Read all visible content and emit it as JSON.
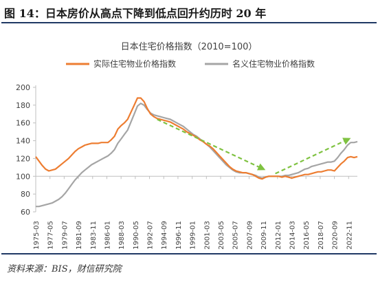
{
  "figure": {
    "heading": "图 14：日本房价从高点下降到低点回升约历时 20 年",
    "source": "资料来源：BIS，财信研究院"
  },
  "colors": {
    "real_series": "#ed7d31",
    "nominal_series": "#a5a5a5",
    "trend_arrow": "#7fc241",
    "heading_rule": "#1f3864"
  },
  "chart_data": {
    "type": "line",
    "title": "日本住宅价格指数（2010=100）",
    "xlabel": "",
    "ylabel": "",
    "ylim": [
      60,
      200
    ],
    "yticks": [
      60,
      80,
      100,
      120,
      140,
      160,
      180,
      200
    ],
    "grid": false,
    "legend_position": "top",
    "x_tick_labels": [
      "1975-03",
      "1977-05",
      "1979-07",
      "1981-09",
      "1983-11",
      "1986-01",
      "1988-03",
      "1990-05",
      "1992-07",
      "1994-09",
      "1996-11",
      "1999-01",
      "2001-03",
      "2003-05",
      "2005-07",
      "2007-09",
      "2009-11",
      "2012-01",
      "2014-03",
      "2016-05",
      "2018-07",
      "2020-09",
      "2022-11"
    ],
    "series": [
      {
        "name": "实际住宅物业价格指数",
        "color": "#ed7d31",
        "points": [
          [
            "1975-03",
            122
          ],
          [
            "1975-09",
            117
          ],
          [
            "1976-03",
            112
          ],
          [
            "1976-09",
            108
          ],
          [
            "1977-03",
            106
          ],
          [
            "1977-09",
            107
          ],
          [
            "1978-03",
            108
          ],
          [
            "1978-09",
            111
          ],
          [
            "1979-03",
            114
          ],
          [
            "1979-09",
            117
          ],
          [
            "1980-03",
            120
          ],
          [
            "1980-09",
            124
          ],
          [
            "1981-03",
            128
          ],
          [
            "1981-09",
            131
          ],
          [
            "1982-03",
            133
          ],
          [
            "1982-09",
            135
          ],
          [
            "1983-03",
            136
          ],
          [
            "1983-09",
            137
          ],
          [
            "1984-03",
            137
          ],
          [
            "1984-09",
            137
          ],
          [
            "1985-03",
            138
          ],
          [
            "1985-09",
            138
          ],
          [
            "1986-03",
            138
          ],
          [
            "1986-09",
            141
          ],
          [
            "1987-03",
            145
          ],
          [
            "1987-09",
            153
          ],
          [
            "1988-03",
            157
          ],
          [
            "1988-09",
            160
          ],
          [
            "1989-03",
            164
          ],
          [
            "1989-09",
            172
          ],
          [
            "1990-03",
            180
          ],
          [
            "1990-09",
            188
          ],
          [
            "1991-03",
            188
          ],
          [
            "1991-09",
            184
          ],
          [
            "1992-03",
            176
          ],
          [
            "1992-09",
            170
          ],
          [
            "1993-03",
            167
          ],
          [
            "1993-09",
            165
          ],
          [
            "1994-03",
            164
          ],
          [
            "1994-09",
            163
          ],
          [
            "1995-03",
            162
          ],
          [
            "1995-09",
            161
          ],
          [
            "1996-03",
            159
          ],
          [
            "1996-09",
            157
          ],
          [
            "1997-03",
            155
          ],
          [
            "1997-09",
            153
          ],
          [
            "1998-03",
            150
          ],
          [
            "1998-09",
            148
          ],
          [
            "1999-03",
            146
          ],
          [
            "1999-09",
            144
          ],
          [
            "2000-03",
            141
          ],
          [
            "2000-09",
            139
          ],
          [
            "2001-03",
            136
          ],
          [
            "2001-09",
            134
          ],
          [
            "2002-03",
            131
          ],
          [
            "2002-09",
            127
          ],
          [
            "2003-03",
            123
          ],
          [
            "2003-09",
            119
          ],
          [
            "2004-03",
            115
          ],
          [
            "2004-09",
            111
          ],
          [
            "2005-03",
            108
          ],
          [
            "2005-09",
            106
          ],
          [
            "2006-03",
            105
          ],
          [
            "2006-09",
            104
          ],
          [
            "2007-03",
            104
          ],
          [
            "2007-09",
            103
          ],
          [
            "2008-03",
            102
          ],
          [
            "2008-09",
            100
          ],
          [
            "2009-03",
            98
          ],
          [
            "2009-09",
            97
          ],
          [
            "2010-03",
            99
          ],
          [
            "2010-09",
            100
          ],
          [
            "2011-03",
            100
          ],
          [
            "2011-09",
            100
          ],
          [
            "2012-03",
            100
          ],
          [
            "2012-09",
            99
          ],
          [
            "2013-03",
            100
          ],
          [
            "2013-09",
            99
          ],
          [
            "2014-03",
            98
          ],
          [
            "2014-09",
            99
          ],
          [
            "2015-03",
            100
          ],
          [
            "2015-09",
            101
          ],
          [
            "2016-03",
            102
          ],
          [
            "2016-09",
            102
          ],
          [
            "2017-03",
            103
          ],
          [
            "2017-09",
            104
          ],
          [
            "2018-03",
            105
          ],
          [
            "2018-09",
            105
          ],
          [
            "2019-03",
            106
          ],
          [
            "2019-09",
            107
          ],
          [
            "2020-03",
            107
          ],
          [
            "2020-09",
            106
          ],
          [
            "2021-03",
            110
          ],
          [
            "2021-09",
            114
          ],
          [
            "2022-03",
            117
          ],
          [
            "2022-09",
            121
          ],
          [
            "2023-03",
            122
          ],
          [
            "2023-09",
            121
          ],
          [
            "2024-03",
            122
          ]
        ]
      },
      {
        "name": "名义住宅物业价格指数",
        "color": "#a5a5a5",
        "points": [
          [
            "1975-03",
            66
          ],
          [
            "1975-09",
            66
          ],
          [
            "1976-03",
            67
          ],
          [
            "1976-09",
            68
          ],
          [
            "1977-03",
            69
          ],
          [
            "1977-09",
            70
          ],
          [
            "1978-03",
            72
          ],
          [
            "1978-09",
            74
          ],
          [
            "1979-03",
            77
          ],
          [
            "1979-09",
            81
          ],
          [
            "1980-03",
            86
          ],
          [
            "1980-09",
            91
          ],
          [
            "1981-03",
            96
          ],
          [
            "1981-09",
            100
          ],
          [
            "1982-03",
            104
          ],
          [
            "1982-09",
            107
          ],
          [
            "1983-03",
            110
          ],
          [
            "1983-09",
            113
          ],
          [
            "1984-03",
            115
          ],
          [
            "1984-09",
            117
          ],
          [
            "1985-03",
            119
          ],
          [
            "1985-09",
            121
          ],
          [
            "1986-03",
            123
          ],
          [
            "1986-09",
            126
          ],
          [
            "1987-03",
            130
          ],
          [
            "1987-09",
            137
          ],
          [
            "1988-03",
            142
          ],
          [
            "1988-09",
            147
          ],
          [
            "1989-03",
            152
          ],
          [
            "1989-09",
            161
          ],
          [
            "1990-03",
            170
          ],
          [
            "1990-09",
            179
          ],
          [
            "1991-03",
            182
          ],
          [
            "1991-09",
            180
          ],
          [
            "1992-03",
            175
          ],
          [
            "1992-09",
            171
          ],
          [
            "1993-03",
            169
          ],
          [
            "1993-09",
            168
          ],
          [
            "1994-03",
            167
          ],
          [
            "1994-09",
            166
          ],
          [
            "1995-03",
            165
          ],
          [
            "1995-09",
            164
          ],
          [
            "1996-03",
            162
          ],
          [
            "1996-09",
            160
          ],
          [
            "1997-03",
            158
          ],
          [
            "1997-09",
            156
          ],
          [
            "1998-03",
            153
          ],
          [
            "1998-09",
            150
          ],
          [
            "1999-03",
            147
          ],
          [
            "1999-09",
            145
          ],
          [
            "2000-03",
            142
          ],
          [
            "2000-09",
            139
          ],
          [
            "2001-03",
            136
          ],
          [
            "2001-09",
            133
          ],
          [
            "2002-03",
            129
          ],
          [
            "2002-09",
            125
          ],
          [
            "2003-03",
            121
          ],
          [
            "2003-09",
            117
          ],
          [
            "2004-03",
            113
          ],
          [
            "2004-09",
            110
          ],
          [
            "2005-03",
            107
          ],
          [
            "2005-09",
            105
          ],
          [
            "2006-03",
            104
          ],
          [
            "2006-09",
            104
          ],
          [
            "2007-03",
            104
          ],
          [
            "2007-09",
            103
          ],
          [
            "2008-03",
            102
          ],
          [
            "2008-09",
            101
          ],
          [
            "2009-03",
            99
          ],
          [
            "2009-09",
            98
          ],
          [
            "2010-03",
            99
          ],
          [
            "2010-09",
            100
          ],
          [
            "2011-03",
            100
          ],
          [
            "2011-09",
            100
          ],
          [
            "2012-03",
            100
          ],
          [
            "2012-09",
            100
          ],
          [
            "2013-03",
            101
          ],
          [
            "2013-09",
            101
          ],
          [
            "2014-03",
            102
          ],
          [
            "2014-09",
            103
          ],
          [
            "2015-03",
            104
          ],
          [
            "2015-09",
            106
          ],
          [
            "2016-03",
            108
          ],
          [
            "2016-09",
            109
          ],
          [
            "2017-03",
            111
          ],
          [
            "2017-09",
            112
          ],
          [
            "2018-03",
            113
          ],
          [
            "2018-09",
            114
          ],
          [
            "2019-03",
            115
          ],
          [
            "2019-09",
            116
          ],
          [
            "2020-03",
            116
          ],
          [
            "2020-09",
            117
          ],
          [
            "2021-03",
            121
          ],
          [
            "2021-09",
            126
          ],
          [
            "2022-03",
            130
          ],
          [
            "2022-09",
            135
          ],
          [
            "2023-03",
            138
          ],
          [
            "2023-09",
            138
          ],
          [
            "2024-03",
            139
          ]
        ]
      }
    ],
    "annotations": [
      {
        "kind": "trend-arrow",
        "direction": "down",
        "from": [
          "1993-09",
          164
        ],
        "to": [
          "2010-03",
          107
        ]
      },
      {
        "kind": "trend-arrow",
        "direction": "up",
        "from": [
          "2011-09",
          103
        ],
        "to": [
          "2023-03",
          143
        ]
      }
    ]
  }
}
